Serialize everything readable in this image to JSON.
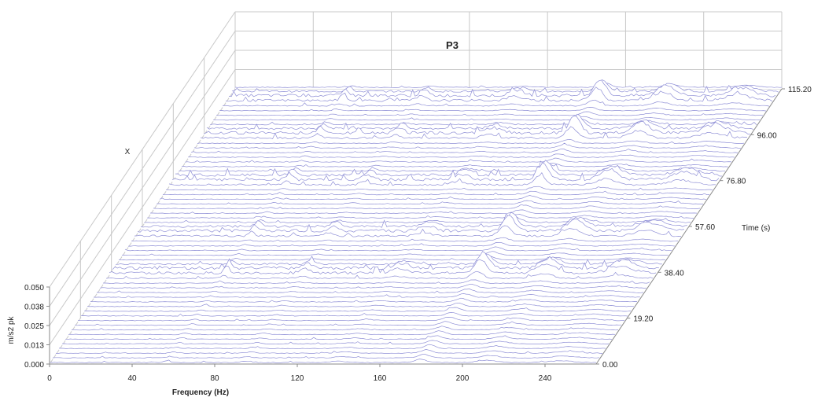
{
  "chart_data": {
    "type": "waterfall-3d",
    "title": "P3",
    "corner_label": "X",
    "x_axis": {
      "label": "Frequency (Hz)",
      "ticks": [
        "0",
        "40",
        "80",
        "120",
        "160",
        "200",
        "240"
      ],
      "range": [
        0,
        280
      ]
    },
    "y_axis": {
      "label": "m/s2 pk",
      "ticks": [
        "0.000",
        "0.013",
        "0.025",
        "0.038",
        "0.050"
      ],
      "range": [
        0,
        0.05
      ]
    },
    "z_axis": {
      "label": "Time (s)",
      "ticks": [
        "0.00",
        "19.20",
        "38.40",
        "57.60",
        "76.80",
        "96.00",
        "115.20"
      ],
      "range": [
        0,
        115.2
      ]
    },
    "series_count": 60,
    "spectral_features": [
      {
        "freq": 190,
        "amplitude": 0.012,
        "width": 4
      },
      {
        "freq": 224,
        "amplitude": 0.008,
        "width": 6
      },
      {
        "freq": 262,
        "amplitude": 0.006,
        "width": 8
      },
      {
        "freq": 100,
        "amplitude": 0.004,
        "width": 3
      },
      {
        "freq": 60,
        "amplitude": 0.005,
        "width": 2
      },
      {
        "freq": 148,
        "amplitude": 0.004,
        "width": 5
      }
    ],
    "high_activity_times": [
      38.4,
      55.0,
      76.8,
      96.0,
      111.0
    ],
    "colors": {
      "trace": "#8f8fd6",
      "axis": "#8a8a8a",
      "grid": "#c8c8c8"
    }
  }
}
